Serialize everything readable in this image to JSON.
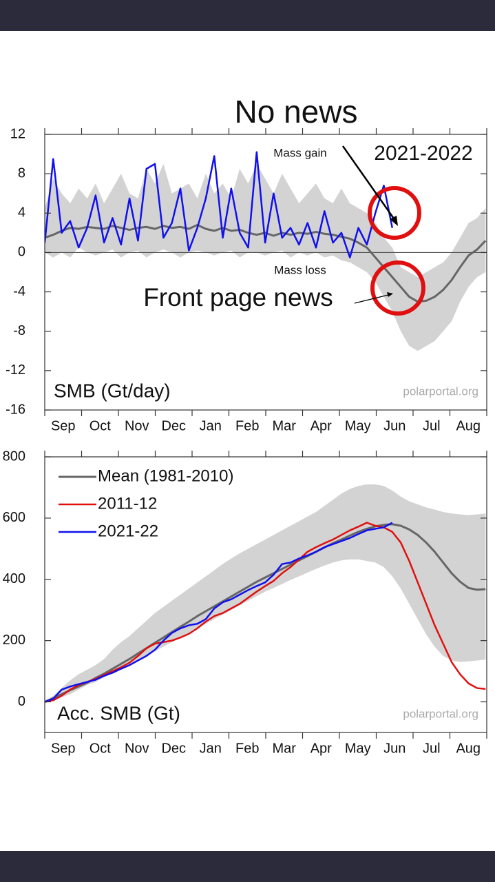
{
  "chart_data": [
    {
      "type": "line",
      "annotations": [
        "No news",
        "Mass gain",
        "2021-2022",
        "Mass loss",
        "Front page news"
      ],
      "label": "SMB (Gt/day)",
      "source": "polarportal.org",
      "categories": [
        "Sep",
        "Oct",
        "Nov",
        "Dec",
        "Jan",
        "Feb",
        "Mar",
        "Apr",
        "May",
        "Jun",
        "Jul",
        "Aug"
      ],
      "x": [
        0,
        7,
        14,
        21,
        28,
        35,
        42,
        49,
        56,
        63,
        70,
        77,
        84,
        91,
        98,
        105,
        112,
        119,
        126,
        133,
        140,
        147,
        154,
        161,
        168,
        175,
        182,
        189,
        196,
        203,
        210,
        217,
        224,
        231,
        238,
        245,
        252,
        259,
        266,
        273,
        280,
        287,
        294,
        301,
        308,
        315,
        322,
        329,
        336,
        343,
        350,
        357,
        364
      ],
      "xlim": [
        0,
        365
      ],
      "ylim": [
        -16,
        12
      ],
      "yticks": [
        12,
        8,
        4,
        0,
        -4,
        -8,
        -12,
        -16
      ],
      "band": {
        "color": "#d3d3d3",
        "upper": [
          4.5,
          7.5,
          6,
          5,
          6.5,
          5.5,
          7,
          5,
          6.5,
          8,
          6,
          5.5,
          8.5,
          7,
          9,
          6,
          6.5,
          7,
          5.5,
          8,
          6,
          7,
          5.5,
          8.5,
          7,
          9,
          7.5,
          6,
          8,
          6.5,
          5,
          6,
          7,
          5.5,
          5,
          6.5,
          5,
          4.5,
          4,
          3,
          1.5,
          0.5,
          -1.5,
          -2,
          -2.5,
          -2,
          -1.5,
          -1,
          0,
          1.5,
          3,
          3.5,
          4.5
        ],
        "lower": [
          0,
          -0.5,
          0,
          -0.5,
          0.5,
          0,
          -0.3,
          0,
          0.3,
          -0.5,
          0,
          0.2,
          -0.5,
          0,
          0.3,
          0,
          -0.5,
          0,
          0.2,
          0,
          -0.3,
          0,
          0.2,
          -0.5,
          0,
          0,
          -0.3,
          0,
          0.2,
          -0.5,
          0,
          -0.3,
          0,
          -0.5,
          -0.3,
          -0.8,
          -1,
          -1.5,
          -2,
          -3,
          -4.5,
          -6,
          -8,
          -9.5,
          -10,
          -9.5,
          -9,
          -8,
          -7,
          -5,
          -3.5,
          -2.5,
          -2
        ]
      },
      "series": [
        {
          "color": "#666666",
          "width": 3,
          "values": [
            1.5,
            1.8,
            2.2,
            2.5,
            2.4,
            2.6,
            2.5,
            2.4,
            2.7,
            2.5,
            2.3,
            2.5,
            2.6,
            2.4,
            2.7,
            2.5,
            2.6,
            2.4,
            2.8,
            2.4,
            2.2,
            2.5,
            2.2,
            2.3,
            2.0,
            1.8,
            2.0,
            1.7,
            2.0,
            1.8,
            2.0,
            1.9,
            2.1,
            1.9,
            1.8,
            1.6,
            1.4,
            1.0,
            0.5,
            -0.5,
            -1.5,
            -2.5,
            -3.5,
            -4.5,
            -5.0,
            -4.9,
            -4.5,
            -3.8,
            -2.8,
            -1.5,
            -0.3,
            0.3,
            1.2
          ]
        },
        {
          "color": "#1010ee",
          "width": 2.5,
          "values": [
            1.0,
            9.5,
            2.0,
            3.2,
            0.5,
            2.5,
            5.8,
            1.0,
            3.5,
            0.8,
            5.5,
            1.2,
            8.5,
            9.0,
            1.5,
            3.0,
            6.5,
            0.2,
            2.5,
            5.5,
            9.8,
            1.5,
            6.5,
            2.0,
            0.5,
            10.2,
            1.0,
            6.0,
            1.5,
            2.5,
            0.8,
            3.0,
            0.5,
            4.2,
            1.0,
            2.0,
            -0.5,
            2.5,
            0.8,
            4.0,
            6.8,
            2.5,
            null,
            null,
            null,
            null,
            null,
            null,
            null,
            null,
            null,
            null,
            null
          ]
        }
      ]
    },
    {
      "type": "line",
      "label": "Acc. SMB (Gt)",
      "source": "polarportal.org",
      "categories": [
        "Sep",
        "Oct",
        "Nov",
        "Dec",
        "Jan",
        "Feb",
        "Mar",
        "Apr",
        "May",
        "Jun",
        "Jul",
        "Aug"
      ],
      "x": [
        0,
        7,
        14,
        21,
        28,
        35,
        42,
        49,
        56,
        63,
        70,
        77,
        84,
        91,
        98,
        105,
        112,
        119,
        126,
        133,
        140,
        147,
        154,
        161,
        168,
        175,
        182,
        189,
        196,
        203,
        210,
        217,
        224,
        231,
        238,
        245,
        252,
        259,
        266,
        273,
        280,
        287,
        294,
        301,
        308,
        315,
        322,
        329,
        336,
        343,
        350,
        357,
        364
      ],
      "xlim": [
        0,
        365
      ],
      "ylim": [
        -100,
        800
      ],
      "yticks": [
        800,
        600,
        400,
        200,
        0
      ],
      "legend": "upper left",
      "band": {
        "color": "#d3d3d3",
        "upper": [
          0,
          20,
          45,
          70,
          90,
          105,
          120,
          140,
          170,
          195,
          215,
          240,
          265,
          290,
          310,
          330,
          350,
          370,
          390,
          410,
          430,
          450,
          468,
          485,
          500,
          515,
          530,
          545,
          560,
          575,
          590,
          605,
          620,
          640,
          660,
          680,
          695,
          705,
          710,
          710,
          705,
          690,
          670,
          655,
          645,
          635,
          628,
          620,
          615,
          612,
          610,
          612,
          615
        ],
        "lower": [
          0,
          5,
          15,
          25,
          40,
          55,
          65,
          80,
          95,
          108,
          120,
          135,
          150,
          165,
          180,
          195,
          210,
          225,
          240,
          255,
          270,
          285,
          300,
          315,
          330,
          345,
          360,
          372,
          385,
          398,
          410,
          422,
          434,
          445,
          455,
          462,
          465,
          465,
          460,
          455,
          440,
          410,
          370,
          320,
          270,
          220,
          180,
          150,
          135,
          130,
          132,
          135,
          138
        ]
      },
      "series": [
        {
          "name": "Mean (1981-2010)",
          "color": "#666666",
          "width": 3,
          "values": [
            0,
            12,
            25,
            38,
            50,
            62,
            78,
            92,
            108,
            124,
            140,
            158,
            175,
            193,
            210,
            228,
            245,
            262,
            280,
            296,
            312,
            328,
            344,
            360,
            376,
            392,
            406,
            420,
            434,
            448,
            462,
            476,
            490,
            504,
            518,
            530,
            543,
            555,
            565,
            573,
            578,
            580,
            575,
            563,
            545,
            520,
            490,
            455,
            420,
            392,
            372,
            366,
            368
          ]
        },
        {
          "name": "2011-12",
          "color": "#e01010",
          "width": 2.5,
          "values": [
            0,
            5,
            20,
            40,
            55,
            65,
            75,
            88,
            100,
            113,
            128,
            150,
            175,
            190,
            195,
            200,
            210,
            222,
            240,
            262,
            280,
            290,
            305,
            320,
            340,
            360,
            378,
            395,
            420,
            440,
            465,
            490,
            505,
            518,
            530,
            545,
            560,
            572,
            585,
            575,
            570,
            555,
            520,
            460,
            390,
            320,
            250,
            190,
            130,
            90,
            60,
            45,
            42
          ]
        },
        {
          "name": "2021-22",
          "color": "#1010ee",
          "width": 2.5,
          "values": [
            0,
            10,
            40,
            50,
            58,
            65,
            72,
            85,
            95,
            108,
            120,
            135,
            150,
            170,
            200,
            225,
            240,
            250,
            255,
            270,
            305,
            325,
            335,
            350,
            365,
            378,
            390,
            415,
            450,
            455,
            468,
            478,
            490,
            505,
            515,
            525,
            535,
            548,
            560,
            565,
            570,
            585,
            null,
            null,
            null,
            null,
            null,
            null,
            null,
            null,
            null,
            null,
            null
          ]
        }
      ]
    }
  ]
}
